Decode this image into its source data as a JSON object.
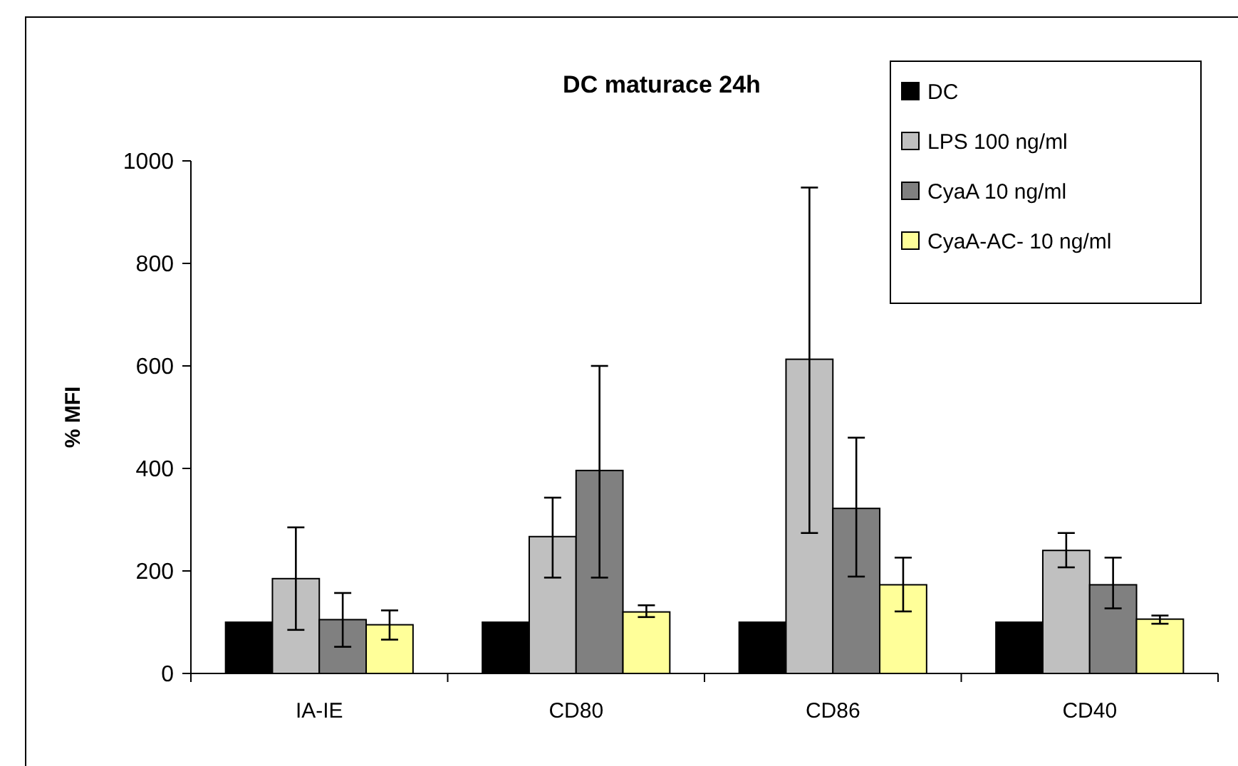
{
  "chart_data": {
    "type": "bar",
    "title": "DC maturace 24h",
    "ylabel": "% MFI",
    "categories": [
      "IA-IE",
      "CD80",
      "CD86",
      "CD40"
    ],
    "ylim": [
      0,
      1000
    ],
    "yticks": [
      0,
      200,
      400,
      600,
      800,
      1000
    ],
    "grid": false,
    "legend": "top right",
    "series": [
      {
        "name": "DC",
        "color": "#000000",
        "values": [
          100,
          100,
          100,
          100
        ]
      },
      {
        "name": "LPS 100 ng/ml",
        "color": "#c0c0c0",
        "values": [
          185,
          267,
          613,
          240
        ],
        "errors": [
          [
            85,
            285
          ],
          [
            187,
            343
          ],
          [
            274,
            948
          ],
          [
            207,
            274
          ]
        ]
      },
      {
        "name": "CyaA 10 ng/ml",
        "color": "#808080",
        "values": [
          105,
          396,
          322,
          173
        ],
        "errors": [
          [
            52,
            157
          ],
          [
            187,
            600
          ],
          [
            189,
            460
          ],
          [
            127,
            226
          ]
        ]
      },
      {
        "name": "CyaA-AC- 10 ng/ml",
        "color": "#ffff99",
        "values": [
          95,
          120,
          173,
          106
        ],
        "errors": [
          [
            66,
            123
          ],
          [
            110,
            133
          ],
          [
            121,
            226
          ],
          [
            97,
            113
          ]
        ]
      }
    ]
  }
}
